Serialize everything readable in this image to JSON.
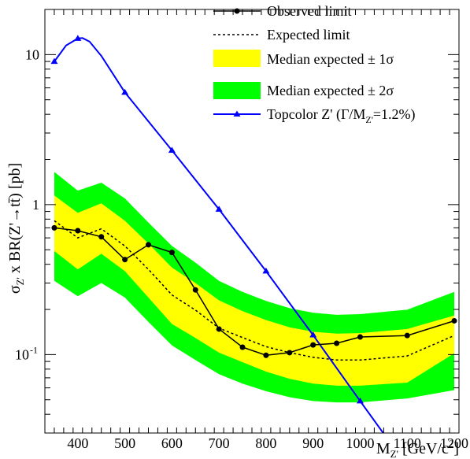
{
  "chart_data": {
    "type": "line",
    "title": "",
    "xlabel": "M",
    "xlabel_sub": "Z'",
    "xlabel_unit": "[GeV/c",
    "xlabel_sup": "2",
    "xlabel_close": "]",
    "ylabel": "σ",
    "ylabel_sub": "Z'",
    "ylabel_rest": " x BR(Z'→tt̄) [pb]",
    "xlim": [
      330,
      1210
    ],
    "ylim": [
      0.03,
      20
    ],
    "yscale": "log",
    "grid": false,
    "legend_position": "top-right",
    "x_ticks": [
      400,
      500,
      600,
      700,
      800,
      900,
      1000,
      1100,
      1200
    ],
    "y_ticks": [
      {
        "value": 10,
        "label": "10"
      },
      {
        "value": 1,
        "label": "1"
      },
      {
        "value": 0.1,
        "label": "10",
        "sup": "-1"
      }
    ],
    "x": [
      350,
      400,
      450,
      500,
      550,
      600,
      650,
      700,
      750,
      800,
      850,
      900,
      950,
      1000,
      1100,
      1200
    ],
    "observed": [
      0.7,
      0.67,
      0.61,
      0.43,
      0.54,
      0.48,
      0.27,
      0.148,
      0.112,
      0.099,
      0.103,
      0.116,
      0.119,
      0.131,
      0.134,
      0.168
    ],
    "expected": [
      0.78,
      0.6,
      0.69,
      0.53,
      0.37,
      0.25,
      0.198,
      0.15,
      0.13,
      0.113,
      0.103,
      0.096,
      0.092,
      0.092,
      0.098,
      0.134
    ],
    "band1_low": [
      0.49,
      0.37,
      0.47,
      0.36,
      0.24,
      0.16,
      0.129,
      0.103,
      0.089,
      0.077,
      0.069,
      0.064,
      0.062,
      0.062,
      0.065,
      0.102
    ],
    "band1_high": [
      1.15,
      0.88,
      1.02,
      0.78,
      0.55,
      0.38,
      0.3,
      0.23,
      0.195,
      0.17,
      0.152,
      0.142,
      0.138,
      0.139,
      0.148,
      0.182
    ],
    "band2_low": [
      0.31,
      0.245,
      0.3,
      0.24,
      0.165,
      0.115,
      0.092,
      0.074,
      0.064,
      0.057,
      0.052,
      0.049,
      0.048,
      0.048,
      0.051,
      0.058
    ],
    "band2_high": [
      1.65,
      1.24,
      1.4,
      1.1,
      0.76,
      0.53,
      0.41,
      0.31,
      0.262,
      0.228,
      0.204,
      0.19,
      0.184,
      0.186,
      0.199,
      0.262
    ],
    "topcolor": {
      "x": [
        350,
        375,
        400,
        410,
        425,
        450,
        500,
        600,
        700,
        800,
        900,
        1000,
        1100
      ],
      "y": [
        9.0,
        11.5,
        12.8,
        12.9,
        12.2,
        9.8,
        5.6,
        2.3,
        0.93,
        0.36,
        0.135,
        0.049,
        0.018
      ],
      "markers": [
        0,
        2,
        6,
        7,
        8,
        9,
        10,
        11
      ]
    },
    "legend": {
      "observed": "Observed limit",
      "expected": "Expected limit",
      "band1": "Median expected ± 1σ",
      "band2": "Median expected ± 2σ",
      "topcolor": "Topcolor Z' (Γ/M",
      "topcolor_sub": "Z'",
      "topcolor_end": "=1.2%)"
    },
    "colors": {
      "band1": "#ffff00",
      "band2": "#00ff00",
      "observed": "#000000",
      "expected": "#000000",
      "topcolor": "#0000ff"
    }
  }
}
